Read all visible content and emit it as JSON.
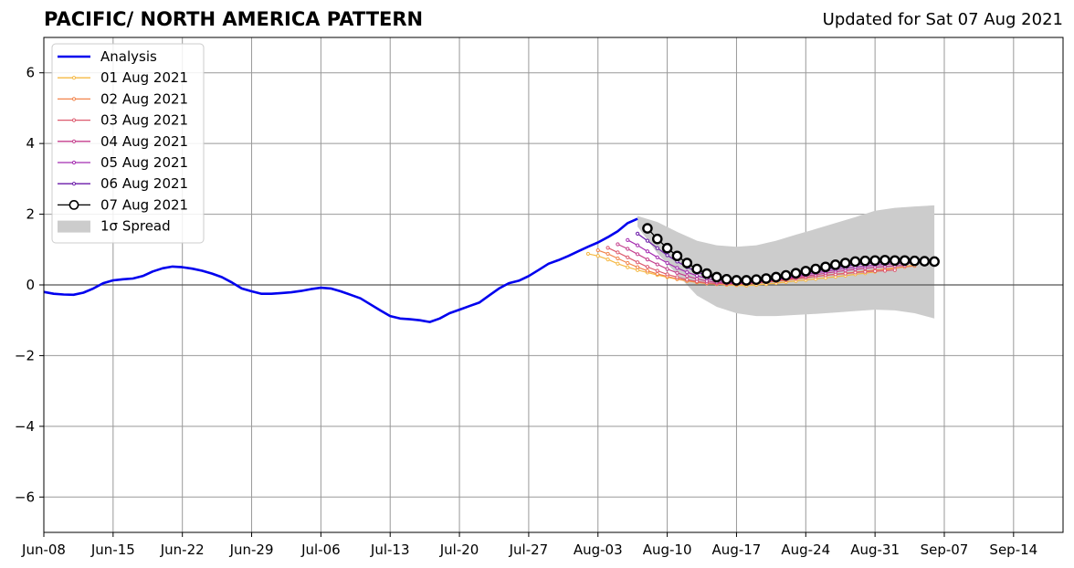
{
  "chart_data": {
    "type": "line",
    "title": "PACIFIC/ NORTH AMERICA PATTERN",
    "subtitle": "Updated for Sat 07 Aug 2021",
    "xlabel": "",
    "ylabel": "",
    "x_ticks": [
      "Jun-08",
      "Jun-15",
      "Jun-22",
      "Jun-29",
      "Jul-06",
      "Jul-13",
      "Jul-20",
      "Jul-27",
      "Aug-03",
      "Aug-10",
      "Aug-17",
      "Aug-24",
      "Aug-31",
      "Sep-07",
      "Sep-14"
    ],
    "y_ticks": [
      -6,
      -4,
      -2,
      0,
      2,
      4,
      6
    ],
    "x_range": [
      "2021-06-08",
      "2021-09-19"
    ],
    "ylim": [
      -7,
      7
    ],
    "grid": true,
    "legend_position": "top-left",
    "analysis": {
      "name": "Analysis",
      "color": "#0000ee",
      "x": [
        "2021-06-08",
        "2021-06-09",
        "2021-06-10",
        "2021-06-11",
        "2021-06-12",
        "2021-06-13",
        "2021-06-14",
        "2021-06-15",
        "2021-06-16",
        "2021-06-17",
        "2021-06-18",
        "2021-06-19",
        "2021-06-20",
        "2021-06-21",
        "2021-06-22",
        "2021-06-23",
        "2021-06-24",
        "2021-06-25",
        "2021-06-26",
        "2021-06-27",
        "2021-06-28",
        "2021-06-29",
        "2021-06-30",
        "2021-07-01",
        "2021-07-02",
        "2021-07-03",
        "2021-07-04",
        "2021-07-05",
        "2021-07-06",
        "2021-07-07",
        "2021-07-08",
        "2021-07-09",
        "2021-07-10",
        "2021-07-11",
        "2021-07-12",
        "2021-07-13",
        "2021-07-14",
        "2021-07-15",
        "2021-07-16",
        "2021-07-17",
        "2021-07-18",
        "2021-07-19",
        "2021-07-20",
        "2021-07-21",
        "2021-07-22",
        "2021-07-23",
        "2021-07-24",
        "2021-07-25",
        "2021-07-26",
        "2021-07-27",
        "2021-07-28",
        "2021-07-29",
        "2021-07-30",
        "2021-07-31",
        "2021-08-01",
        "2021-08-02",
        "2021-08-03",
        "2021-08-04",
        "2021-08-05",
        "2021-08-06",
        "2021-08-07"
      ],
      "y": [
        -0.2,
        -0.25,
        -0.27,
        -0.28,
        -0.22,
        -0.1,
        0.05,
        0.13,
        0.16,
        0.18,
        0.25,
        0.38,
        0.47,
        0.52,
        0.5,
        0.46,
        0.4,
        0.32,
        0.22,
        0.07,
        -0.1,
        -0.18,
        -0.25,
        -0.25,
        -0.23,
        -0.21,
        -0.17,
        -0.12,
        -0.08,
        -0.1,
        -0.18,
        -0.28,
        -0.38,
        -0.55,
        -0.72,
        -0.88,
        -0.95,
        -0.97,
        -1.0,
        -1.05,
        -0.95,
        -0.8,
        -0.7,
        -0.6,
        -0.5,
        -0.3,
        -0.1,
        0.05,
        0.12,
        0.25,
        0.42,
        0.6,
        0.7,
        0.82,
        0.95,
        1.08,
        1.2,
        1.35,
        1.52,
        1.75,
        1.87
      ]
    },
    "forecasts": [
      {
        "name": "01 Aug 2021",
        "color": "#f5b843",
        "x": [
          "2021-08-02",
          "2021-08-03",
          "2021-08-04",
          "2021-08-05",
          "2021-08-06",
          "2021-08-07",
          "2021-08-08",
          "2021-08-09",
          "2021-08-10",
          "2021-08-11",
          "2021-08-12",
          "2021-08-13",
          "2021-08-14",
          "2021-08-15",
          "2021-08-16",
          "2021-08-17",
          "2021-08-18",
          "2021-08-19",
          "2021-08-20",
          "2021-08-21",
          "2021-08-22",
          "2021-08-23",
          "2021-08-24",
          "2021-08-25",
          "2021-08-26",
          "2021-08-27",
          "2021-08-28",
          "2021-08-29",
          "2021-08-30",
          "2021-08-31",
          "2021-09-01",
          "2021-09-02",
          "2021-09-03",
          "2021-09-04"
        ],
        "y": [
          0.88,
          0.82,
          0.72,
          0.6,
          0.5,
          0.42,
          0.35,
          0.28,
          0.22,
          0.16,
          0.11,
          0.07,
          0.04,
          0.02,
          0.0,
          -0.01,
          -0.02,
          0.0,
          0.02,
          0.05,
          0.08,
          0.11,
          0.14,
          0.17,
          0.2,
          0.23,
          0.26,
          0.3,
          0.33,
          0.37,
          0.42,
          0.47,
          0.52,
          0.56
        ]
      },
      {
        "name": "02 Aug 2021",
        "color": "#f2844b",
        "x": [
          "2021-08-03",
          "2021-08-04",
          "2021-08-05",
          "2021-08-06",
          "2021-08-07",
          "2021-08-08",
          "2021-08-09",
          "2021-08-10",
          "2021-08-11",
          "2021-08-12",
          "2021-08-13",
          "2021-08-14",
          "2021-08-15",
          "2021-08-16",
          "2021-08-17",
          "2021-08-18",
          "2021-08-19",
          "2021-08-20",
          "2021-08-21",
          "2021-08-22",
          "2021-08-23",
          "2021-08-24",
          "2021-08-25",
          "2021-08-26",
          "2021-08-27",
          "2021-08-28",
          "2021-08-29",
          "2021-08-30",
          "2021-08-31",
          "2021-09-01",
          "2021-09-02",
          "2021-09-03",
          "2021-09-04"
        ],
        "y": [
          0.98,
          0.88,
          0.75,
          0.62,
          0.5,
          0.4,
          0.31,
          0.24,
          0.17,
          0.12,
          0.08,
          0.05,
          0.03,
          0.02,
          0.01,
          0.02,
          0.04,
          0.07,
          0.1,
          0.13,
          0.17,
          0.2,
          0.24,
          0.27,
          0.3,
          0.33,
          0.36,
          0.39,
          0.42,
          0.45,
          0.48,
          0.51,
          0.54
        ]
      },
      {
        "name": "03 Aug 2021",
        "color": "#dd5a6f",
        "x": [
          "2021-08-04",
          "2021-08-05",
          "2021-08-06",
          "2021-08-07",
          "2021-08-08",
          "2021-08-09",
          "2021-08-10",
          "2021-08-11",
          "2021-08-12",
          "2021-08-13",
          "2021-08-14",
          "2021-08-15",
          "2021-08-16",
          "2021-08-17",
          "2021-08-18",
          "2021-08-19",
          "2021-08-20",
          "2021-08-21",
          "2021-08-22",
          "2021-08-23",
          "2021-08-24",
          "2021-08-25",
          "2021-08-26",
          "2021-08-27",
          "2021-08-28",
          "2021-08-29",
          "2021-08-30",
          "2021-08-31",
          "2021-09-01",
          "2021-09-02"
        ],
        "y": [
          1.05,
          0.92,
          0.78,
          0.64,
          0.51,
          0.4,
          0.3,
          0.22,
          0.15,
          0.1,
          0.06,
          0.04,
          0.03,
          0.03,
          0.04,
          0.06,
          0.09,
          0.12,
          0.15,
          0.18,
          0.21,
          0.24,
          0.27,
          0.3,
          0.32,
          0.35,
          0.37,
          0.39,
          0.4,
          0.42
        ]
      },
      {
        "name": "04 Aug 2021",
        "color": "#c43e8c",
        "x": [
          "2021-08-05",
          "2021-08-06",
          "2021-08-07",
          "2021-08-08",
          "2021-08-09",
          "2021-08-10",
          "2021-08-11",
          "2021-08-12",
          "2021-08-13",
          "2021-08-14",
          "2021-08-15",
          "2021-08-16",
          "2021-08-17",
          "2021-08-18",
          "2021-08-19",
          "2021-08-20",
          "2021-08-21",
          "2021-08-22",
          "2021-08-23",
          "2021-08-24",
          "2021-08-25",
          "2021-08-26",
          "2021-08-27",
          "2021-08-28",
          "2021-08-29",
          "2021-08-30",
          "2021-08-31",
          "2021-09-01",
          "2021-09-02",
          "2021-09-03"
        ],
        "y": [
          1.15,
          1.02,
          0.87,
          0.72,
          0.58,
          0.45,
          0.34,
          0.25,
          0.17,
          0.11,
          0.07,
          0.05,
          0.04,
          0.05,
          0.07,
          0.1,
          0.13,
          0.17,
          0.21,
          0.25,
          0.29,
          0.33,
          0.37,
          0.41,
          0.44,
          0.47,
          0.5,
          0.52,
          0.54,
          0.55
        ]
      },
      {
        "name": "05 Aug 2021",
        "color": "#a52cb0",
        "x": [
          "2021-08-06",
          "2021-08-07",
          "2021-08-08",
          "2021-08-09",
          "2021-08-10",
          "2021-08-11",
          "2021-08-12",
          "2021-08-13",
          "2021-08-14",
          "2021-08-15",
          "2021-08-16",
          "2021-08-17",
          "2021-08-18",
          "2021-08-19",
          "2021-08-20",
          "2021-08-21",
          "2021-08-22",
          "2021-08-23",
          "2021-08-24",
          "2021-08-25",
          "2021-08-26",
          "2021-08-27",
          "2021-08-28",
          "2021-08-29",
          "2021-08-30",
          "2021-08-31",
          "2021-09-01",
          "2021-09-02",
          "2021-09-03",
          "2021-09-04"
        ],
        "y": [
          1.27,
          1.12,
          0.95,
          0.78,
          0.62,
          0.48,
          0.36,
          0.26,
          0.18,
          0.12,
          0.08,
          0.06,
          0.06,
          0.08,
          0.11,
          0.15,
          0.19,
          0.24,
          0.29,
          0.34,
          0.38,
          0.43,
          0.47,
          0.5,
          0.53,
          0.56,
          0.58,
          0.6,
          0.61,
          0.62
        ]
      },
      {
        "name": "06 Aug 2021",
        "color": "#6a1aa8",
        "x": [
          "2021-08-07",
          "2021-08-08",
          "2021-08-09",
          "2021-08-10",
          "2021-08-11",
          "2021-08-12",
          "2021-08-13",
          "2021-08-14",
          "2021-08-15",
          "2021-08-16",
          "2021-08-17",
          "2021-08-18",
          "2021-08-19",
          "2021-08-20",
          "2021-08-21",
          "2021-08-22",
          "2021-08-23",
          "2021-08-24",
          "2021-08-25",
          "2021-08-26",
          "2021-08-27",
          "2021-08-28",
          "2021-08-29",
          "2021-08-30",
          "2021-08-31",
          "2021-09-01",
          "2021-09-02",
          "2021-09-03",
          "2021-09-04",
          "2021-09-05"
        ],
        "y": [
          1.45,
          1.25,
          1.04,
          0.84,
          0.66,
          0.5,
          0.37,
          0.26,
          0.18,
          0.12,
          0.09,
          0.08,
          0.1,
          0.13,
          0.17,
          0.22,
          0.28,
          0.33,
          0.39,
          0.44,
          0.49,
          0.53,
          0.57,
          0.6,
          0.62,
          0.64,
          0.65,
          0.66,
          0.66,
          0.66
        ]
      },
      {
        "name": "07 Aug 2021",
        "color": "#000000",
        "x": [
          "2021-08-08",
          "2021-08-09",
          "2021-08-10",
          "2021-08-11",
          "2021-08-12",
          "2021-08-13",
          "2021-08-14",
          "2021-08-15",
          "2021-08-16",
          "2021-08-17",
          "2021-08-18",
          "2021-08-19",
          "2021-08-20",
          "2021-08-21",
          "2021-08-22",
          "2021-08-23",
          "2021-08-24",
          "2021-08-25",
          "2021-08-26",
          "2021-08-27",
          "2021-08-28",
          "2021-08-29",
          "2021-08-30",
          "2021-08-31",
          "2021-09-01",
          "2021-09-02",
          "2021-09-03",
          "2021-09-04",
          "2021-09-05",
          "2021-09-06"
        ],
        "y": [
          1.6,
          1.3,
          1.04,
          0.82,
          0.62,
          0.45,
          0.32,
          0.22,
          0.16,
          0.13,
          0.13,
          0.15,
          0.18,
          0.22,
          0.27,
          0.33,
          0.39,
          0.45,
          0.51,
          0.57,
          0.62,
          0.66,
          0.68,
          0.69,
          0.7,
          0.69,
          0.69,
          0.68,
          0.67,
          0.66
        ]
      }
    ],
    "spread": {
      "name": "1σ Spread",
      "color": "#cccccc",
      "x": [
        "2021-08-07",
        "2021-08-09",
        "2021-08-11",
        "2021-08-13",
        "2021-08-15",
        "2021-08-17",
        "2021-08-19",
        "2021-08-21",
        "2021-08-23",
        "2021-08-25",
        "2021-08-27",
        "2021-08-29",
        "2021-08-31",
        "2021-09-02",
        "2021-09-04",
        "2021-09-06"
      ],
      "upper": [
        1.95,
        1.78,
        1.5,
        1.25,
        1.12,
        1.08,
        1.12,
        1.25,
        1.42,
        1.58,
        1.75,
        1.92,
        2.1,
        2.18,
        2.22,
        2.25
      ],
      "lower": [
        1.65,
        0.9,
        0.3,
        -0.3,
        -0.62,
        -0.8,
        -0.88,
        -0.88,
        -0.85,
        -0.82,
        -0.78,
        -0.74,
        -0.7,
        -0.72,
        -0.8,
        -0.95
      ]
    }
  }
}
